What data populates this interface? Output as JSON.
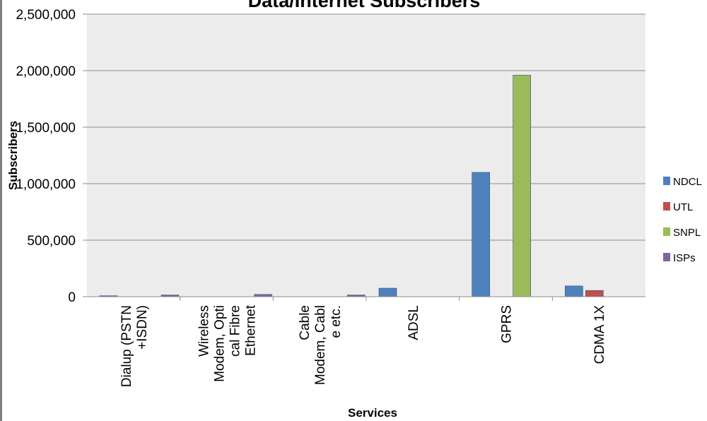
{
  "chart_data": {
    "type": "bar",
    "title": "Data/Internet Subscribers",
    "xlabel": "Services",
    "ylabel": "Subscribers",
    "categories": [
      [
        "Dialup (PSTN",
        "+ISDN)"
      ],
      [
        "Wireless",
        "Modem, Opti",
        "cal Fibre",
        "Ethernet"
      ],
      [
        "Cable",
        "Modem, Cabl",
        "e etc."
      ],
      [
        "ADSL"
      ],
      [
        "GPRS"
      ],
      [
        "CDMA 1X"
      ]
    ],
    "series": [
      {
        "name": "NDCL",
        "color": "#4f81bd",
        "values": [
          8000,
          0,
          0,
          75000,
          1100000,
          95000
        ]
      },
      {
        "name": "UTL",
        "color": "#c0504d",
        "values": [
          0,
          0,
          0,
          0,
          0,
          55000
        ]
      },
      {
        "name": "SNPL",
        "color": "#9bbb59",
        "values": [
          0,
          0,
          0,
          0,
          1960000,
          0
        ]
      },
      {
        "name": "ISPs",
        "color": "#8064a2",
        "values": [
          15000,
          20000,
          15000,
          0,
          0,
          0
        ]
      }
    ],
    "ylim": [
      0,
      2500000
    ],
    "yticks": [
      0,
      500000,
      1000000,
      1500000,
      2000000,
      2500000
    ],
    "ytick_labels": [
      "0",
      "500,000",
      "1,000,000",
      "1,500,000",
      "2,000,000",
      "2,500,000"
    ],
    "grid": true,
    "plot_background": "#ececec",
    "legend_position": "right"
  }
}
